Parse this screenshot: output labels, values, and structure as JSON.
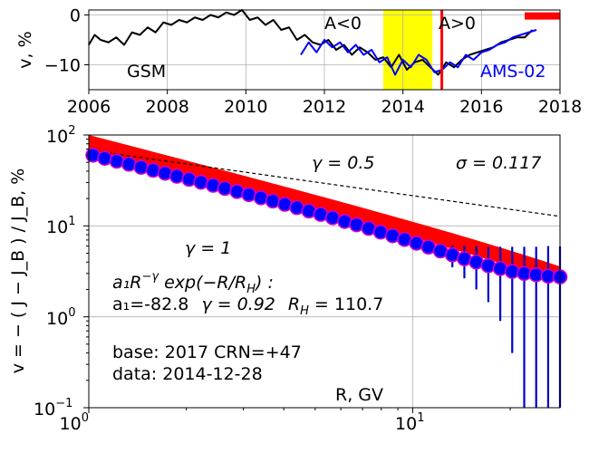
{
  "chart_data": [
    {
      "type": "line",
      "ylabel": "v, %",
      "xlim": [
        2006,
        2018
      ],
      "ylim": [
        -15,
        1
      ],
      "x_ticks": [
        2006,
        2008,
        2010,
        2012,
        2014,
        2016,
        2018
      ],
      "x_tick_labels": [
        "2006",
        "2008",
        "2010",
        "2012",
        "2014",
        "2016",
        "2018"
      ],
      "y_ticks": [
        0,
        -10
      ],
      "y_tick_labels": [
        "0",
        "−10"
      ],
      "grid": true,
      "annotations": {
        "gsm": "GSM",
        "ams": "AMS-02",
        "a_neg": "A<0",
        "a_pos": "A>0"
      },
      "highlight_span": [
        2013.5,
        2014.75
      ],
      "highlight_color": "#ffff00",
      "marker_line_x": 2014.99,
      "marker_line_color": "#ff0000",
      "base_bar": [
        2017.1,
        2018
      ],
      "base_bar_y": -0.2,
      "series": [
        {
          "name": "GSM",
          "color": "#000000",
          "x": [
            2006.0,
            2006.15,
            2006.3,
            2006.5,
            2006.7,
            2006.9,
            2007.1,
            2007.3,
            2007.5,
            2007.7,
            2007.9,
            2008.1,
            2008.3,
            2008.5,
            2008.7,
            2008.9,
            2009.1,
            2009.3,
            2009.5,
            2009.7,
            2009.9,
            2010.1,
            2010.3,
            2010.5,
            2010.7,
            2010.9,
            2011.1,
            2011.3,
            2011.5,
            2011.7,
            2011.9,
            2012.1,
            2012.3,
            2012.5,
            2012.7,
            2012.9,
            2013.1,
            2013.3,
            2013.5,
            2013.7,
            2013.9,
            2014.1,
            2014.3,
            2014.5,
            2014.7,
            2014.9,
            2015.1,
            2015.3,
            2015.5,
            2015.7,
            2015.9,
            2016.1,
            2016.3,
            2016.5,
            2016.7,
            2016.9,
            2017.1,
            2017.3
          ],
          "values": [
            -6.0,
            -4.0,
            -5.0,
            -5.5,
            -4.5,
            -6.0,
            -3.5,
            -4.0,
            -2.5,
            -3.5,
            -1.5,
            -2.0,
            -1.0,
            -1.5,
            -0.5,
            -1.0,
            0.0,
            -0.5,
            0.5,
            0.0,
            1.0,
            -1.0,
            -0.5,
            -2.0,
            -1.0,
            -3.0,
            -2.5,
            -5.0,
            -4.0,
            -5.5,
            -6.0,
            -5.0,
            -7.0,
            -6.0,
            -8.0,
            -6.5,
            -7.5,
            -9.0,
            -8.5,
            -10.5,
            -8.0,
            -11.0,
            -9.5,
            -9.0,
            -10.5,
            -12.0,
            -9.5,
            -10.5,
            -9.0,
            -8.0,
            -7.5,
            -7.0,
            -6.5,
            -5.5,
            -5.0,
            -4.5,
            -4.5,
            -3.0
          ]
        },
        {
          "name": "AMS-02",
          "color": "#0000ff",
          "x": [
            2011.4,
            2011.6,
            2011.8,
            2012.0,
            2012.2,
            2012.4,
            2012.6,
            2012.8,
            2013.0,
            2013.2,
            2013.4,
            2013.6,
            2013.8,
            2014.0,
            2014.2,
            2014.4,
            2014.6,
            2014.8,
            2015.0,
            2015.2,
            2015.4,
            2015.6,
            2015.8,
            2016.0,
            2016.2,
            2016.4,
            2016.6,
            2016.8,
            2017.0,
            2017.2,
            2017.4
          ],
          "values": [
            -8.0,
            -5.5,
            -7.5,
            -5.0,
            -6.5,
            -5.5,
            -7.5,
            -6.0,
            -8.0,
            -7.0,
            -9.5,
            -8.5,
            -12.0,
            -9.0,
            -10.5,
            -8.0,
            -9.0,
            -11.5,
            -11.0,
            -9.5,
            -10.5,
            -8.0,
            -9.0,
            -7.5,
            -7.0,
            -6.0,
            -5.5,
            -4.5,
            -4.0,
            -3.5,
            -3.0
          ]
        }
      ]
    },
    {
      "type": "scatter",
      "xlabel": "R, GV",
      "ylabel": "v = − ( J − J_B ) / J_B, %",
      "x_scale": "log",
      "y_scale": "log",
      "xlim": [
        1.0,
        28.5
      ],
      "ylim": [
        0.1,
        100
      ],
      "x_ticks": [
        1,
        10
      ],
      "y_ticks": [
        0.1,
        1,
        10,
        100
      ],
      "grid": true,
      "annotations": {
        "gamma_half": "γ = 0.5",
        "sigma": "σ = 0.117",
        "gamma_one": "γ = 1",
        "formula_head": "a₁R",
        "formula_exp": "−γ",
        "formula_tail": " exp(−R/R",
        "formula_sub": "H",
        "formula_end": ") :",
        "params_a1": "a₁=-82.8",
        "params_gamma": "γ = 0.92",
        "params_rh": "R",
        "params_rh_sub": "H",
        "params_rh_val": " = 110.7",
        "base": "base: 2017   CRN=+47",
        "date": "data: 2014-12-28"
      },
      "tick_labels": {
        "x": [
          "10",
          "0",
          "10",
          "1"
        ],
        "y": [
          "10",
          "−1",
          "10",
          "0",
          "10",
          "1",
          "10",
          "2"
        ]
      },
      "fit_band": {
        "color": "#ff0000",
        "lower_factor": 0.82,
        "upper_factor": 1.22,
        "a1": 82.8,
        "gamma": 0.92,
        "rh": 110.7
      },
      "reference_lines": [
        {
          "gamma": 0.5,
          "start": [
            1.0,
            68
          ]
        },
        {
          "gamma": 1.0,
          "start": [
            1.0,
            68
          ]
        }
      ],
      "series": [
        {
          "marker_fill": "#0000ff",
          "marker_edge": "#cc00cc",
          "error_color": "#0000cc",
          "x": [
            1.03,
            1.12,
            1.22,
            1.33,
            1.45,
            1.58,
            1.72,
            1.87,
            2.04,
            2.22,
            2.42,
            2.63,
            2.87,
            3.12,
            3.4,
            3.7,
            4.03,
            4.39,
            4.78,
            5.2,
            5.66,
            6.17,
            6.71,
            7.31,
            7.96,
            8.67,
            9.44,
            10.28,
            11.19,
            12.18,
            13.26,
            14.44,
            15.72,
            17.12,
            18.64,
            20.29,
            22.1,
            24.06,
            26.2,
            28.5
          ],
          "values": [
            60,
            55.5,
            51.5,
            47.7,
            44.2,
            41.0,
            38.0,
            35.2,
            32.6,
            30.2,
            28.0,
            25.9,
            23.9,
            22.1,
            20.4,
            18.8,
            17.3,
            15.9,
            14.6,
            13.4,
            12.3,
            11.2,
            10.3,
            9.4,
            8.55,
            7.8,
            7.1,
            6.45,
            5.85,
            5.3,
            4.8,
            4.35,
            4.0,
            3.65,
            3.4,
            3.15,
            3.0,
            2.9,
            2.8,
            2.75
          ],
          "err_low": [
            0,
            0,
            0,
            0,
            0,
            0,
            0,
            0,
            0,
            0,
            0,
            0,
            0,
            0,
            0,
            0,
            0,
            0,
            0,
            0,
            0,
            0,
            0,
            0,
            0,
            0,
            0,
            0,
            0,
            0,
            1.3,
            1.7,
            2.0,
            2.2,
            2.5,
            2.75,
            2.9,
            2.8,
            2.7,
            2.65
          ],
          "err_high": [
            0,
            0,
            0,
            0,
            0,
            0,
            0,
            0,
            0,
            0,
            0,
            0,
            0,
            0,
            0,
            0,
            0,
            0,
            0,
            0,
            0,
            0,
            0,
            0,
            0,
            0,
            0,
            0,
            0,
            0,
            1.3,
            1.7,
            2.0,
            2.2,
            2.5,
            2.75,
            2.9,
            3.0,
            3.2,
            3.2
          ]
        }
      ]
    }
  ]
}
